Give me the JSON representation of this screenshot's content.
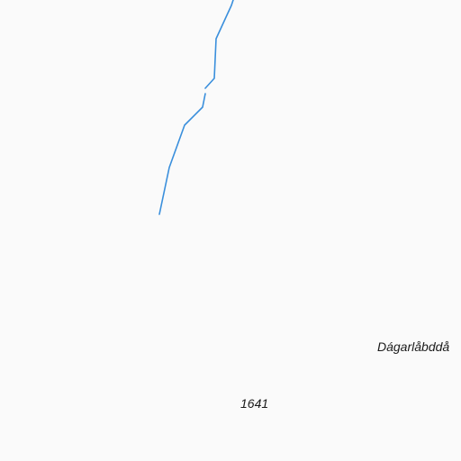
{
  "map": {
    "background_color": "#fafafa",
    "stream_color": "#3a8fdc",
    "labels": {
      "place_name": "Dágarlåbddå",
      "elevation": "1641"
    }
  }
}
